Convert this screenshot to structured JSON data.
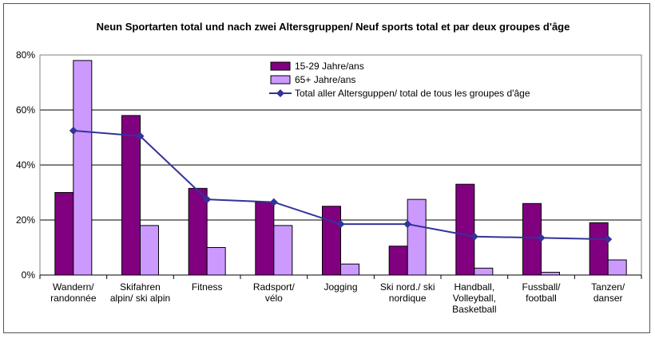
{
  "chart_data": {
    "type": "bar",
    "title": "Neun Sportarten total und nach zwei Altersgruppen/ Neuf sports total et par deux groupes d'âge",
    "categories": [
      [
        "Wandern/",
        "randonnée"
      ],
      [
        "Skifahren",
        "alpin/ ski alpin"
      ],
      [
        "Fitness"
      ],
      [
        "Radsport/",
        "vélo"
      ],
      [
        "Jogging"
      ],
      [
        "Ski nord./ ski",
        "nordique"
      ],
      [
        "Handball,",
        "Volleyball,",
        "Basketball"
      ],
      [
        "Fussball/",
        "football"
      ],
      [
        "Tanzen/",
        "danser"
      ]
    ],
    "series": [
      {
        "name": "15-29 Jahre/ans",
        "kind": "bar",
        "color": "#800080",
        "values": [
          30,
          58,
          31.5,
          26.5,
          25,
          10.5,
          33,
          26,
          19
        ]
      },
      {
        "name": "65+ Jahre/ans",
        "kind": "bar",
        "color": "#cc99ff",
        "values": [
          78,
          18,
          10,
          18,
          4,
          27.5,
          2.5,
          1,
          5.5
        ]
      },
      {
        "name": "Total aller Altersguppen/ total de tous les groupes d'âge",
        "kind": "line",
        "color": "#333399",
        "values": [
          52.5,
          50.5,
          27.5,
          26.5,
          18.5,
          18.5,
          14,
          13.5,
          13
        ]
      }
    ],
    "ylim": [
      0,
      80
    ],
    "yticks": [
      0,
      20,
      40,
      60,
      80
    ],
    "ytick_labels": [
      "0%",
      "20%",
      "40%",
      "60%",
      "80%"
    ],
    "grid": true,
    "xlabel": "",
    "ylabel": "",
    "legend_position": "top-right"
  }
}
